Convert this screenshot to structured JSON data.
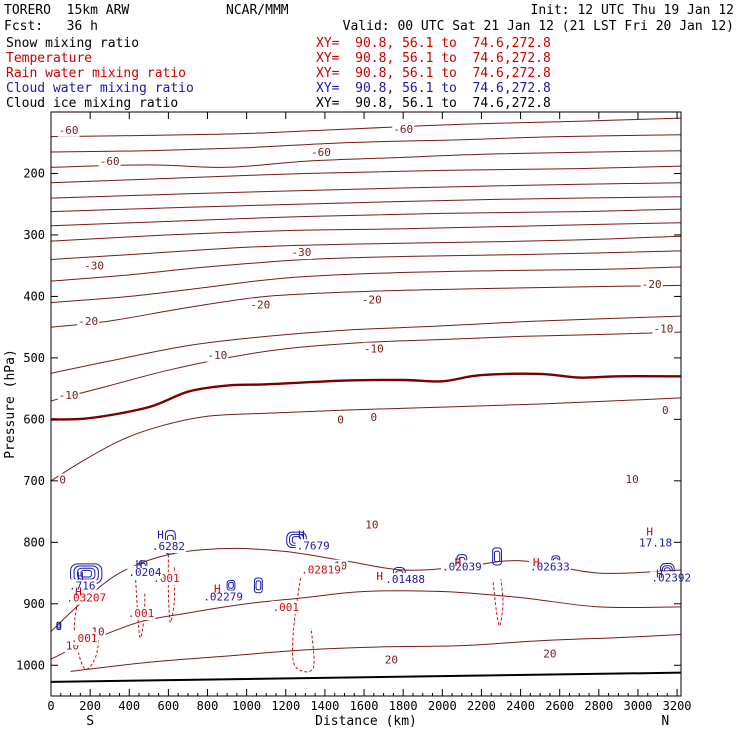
{
  "header": {
    "model": "TORERO  15km ARW",
    "org": "NCAR/MMM",
    "init": "Init: 12 UTC Thu 19 Jan 12",
    "fcst": "Fcst:   36 h",
    "valid": "Valid: 00 UTC Sat 21 Jan 12 (21 LST Fri 20 Jan 12)"
  },
  "legend": [
    {
      "label": "Snow mixing ratio",
      "color": "#000000",
      "xy": "XY=  90.8, 56.1 to  74.6,272.8"
    },
    {
      "label": "Temperature",
      "color": "#cc0000",
      "xy": "XY=  90.8, 56.1 to  74.6,272.8"
    },
    {
      "label": "Rain water mixing ratio",
      "color": "#cc0000",
      "xy": "XY=  90.8, 56.1 to  74.6,272.8"
    },
    {
      "label": "Cloud water mixing ratio",
      "color": "#1a1aaa",
      "xy": "XY=  90.8, 56.1 to  74.6,272.8"
    },
    {
      "label": "Cloud ice mixing ratio",
      "color": "#000000",
      "xy": "XY=  90.8, 56.1 to  74.6,272.8"
    }
  ],
  "chart_data": {
    "type": "line",
    "xlabel": "Distance (km)",
    "ylabel": "Pressure (hPa)",
    "xlim": [
      0,
      3220
    ],
    "ylim": [
      1050,
      100
    ],
    "xticks": [
      0,
      200,
      400,
      600,
      800,
      1000,
      1200,
      1400,
      1600,
      1800,
      2000,
      2200,
      2400,
      2600,
      2800,
      3000,
      3200
    ],
    "yticks": [
      200,
      300,
      400,
      500,
      600,
      700,
      800,
      900,
      1000
    ],
    "x_end_labels": {
      "left": "S",
      "right": "N"
    },
    "ground_pressure": [
      [
        0,
        1027
      ],
      [
        3220,
        1012
      ]
    ],
    "temperature_colors": {
      "line": "#7a1a1a",
      "freezing": "#7a0000"
    },
    "temperature_contours": [
      {
        "level": 0,
        "bold": true,
        "points": [
          [
            0,
            600
          ],
          [
            200,
            598
          ],
          [
            500,
            580
          ],
          [
            700,
            555
          ],
          [
            900,
            545
          ],
          [
            1100,
            543
          ],
          [
            1500,
            537
          ],
          [
            1800,
            536
          ],
          [
            2000,
            538
          ],
          [
            2200,
            528
          ],
          [
            2500,
            526
          ],
          [
            2700,
            532
          ],
          [
            2900,
            530
          ],
          [
            3220,
            530
          ]
        ]
      },
      {
        "level": 0,
        "bold": false,
        "points": [
          [
            0,
            700
          ],
          [
            150,
            670
          ],
          [
            350,
            635
          ],
          [
            550,
            612
          ],
          [
            800,
            595
          ],
          [
            1100,
            590
          ],
          [
            1500,
            585
          ],
          [
            2000,
            580
          ],
          [
            2500,
            575
          ],
          [
            3220,
            565
          ]
        ]
      },
      {
        "level": -10,
        "points": [
          [
            0,
            570
          ],
          [
            300,
            545
          ],
          [
            600,
            520
          ],
          [
            900,
            500
          ],
          [
            1200,
            485
          ],
          [
            1600,
            475
          ],
          [
            2000,
            470
          ],
          [
            2400,
            465
          ],
          [
            2800,
            462
          ],
          [
            3220,
            458
          ]
        ]
      },
      {
        "level": -10,
        "points": [
          [
            0,
            525
          ],
          [
            300,
            505
          ],
          [
            700,
            480
          ],
          [
            1100,
            465
          ],
          [
            1500,
            455
          ],
          [
            2000,
            448
          ],
          [
            2500,
            440
          ],
          [
            3220,
            432
          ]
        ]
      },
      {
        "level": -20,
        "points": [
          [
            0,
            450
          ],
          [
            300,
            440
          ],
          [
            700,
            418
          ],
          [
            1100,
            400
          ],
          [
            1600,
            392
          ],
          [
            2100,
            388
          ],
          [
            2600,
            385
          ],
          [
            3220,
            382
          ]
        ]
      },
      {
        "level": -20,
        "points": [
          [
            0,
            410
          ],
          [
            400,
            400
          ],
          [
            800,
            385
          ],
          [
            1200,
            370
          ],
          [
            1700,
            362
          ],
          [
            2300,
            358
          ],
          [
            2800,
            356
          ],
          [
            3220,
            352
          ]
        ]
      },
      {
        "level": -30,
        "points": [
          [
            0,
            375
          ],
          [
            400,
            365
          ],
          [
            800,
            352
          ],
          [
            1300,
            340
          ],
          [
            1800,
            335
          ],
          [
            2400,
            332
          ],
          [
            3220,
            326
          ]
        ]
      },
      {
        "level": -30,
        "points": [
          [
            0,
            340
          ],
          [
            500,
            330
          ],
          [
            1000,
            320
          ],
          [
            1500,
            315
          ],
          [
            2100,
            312
          ],
          [
            2700,
            308
          ],
          [
            3220,
            302
          ]
        ]
      },
      {
        "level": -40,
        "points": [
          [
            0,
            310
          ],
          [
            600,
            300
          ],
          [
            1200,
            293
          ],
          [
            1800,
            290
          ],
          [
            2500,
            285
          ],
          [
            3220,
            280
          ]
        ]
      },
      {
        "level": -40,
        "points": [
          [
            0,
            285
          ],
          [
            600,
            278
          ],
          [
            1300,
            270
          ],
          [
            2000,
            265
          ],
          [
            2700,
            262
          ],
          [
            3220,
            258
          ]
        ]
      },
      {
        "level": -50,
        "points": [
          [
            0,
            262
          ],
          [
            700,
            255
          ],
          [
            1500,
            248
          ],
          [
            2300,
            242
          ],
          [
            3220,
            238
          ]
        ]
      },
      {
        "level": -50,
        "points": [
          [
            0,
            240
          ],
          [
            700,
            233
          ],
          [
            1500,
            226
          ],
          [
            2300,
            220
          ],
          [
            3220,
            215
          ]
        ]
      },
      {
        "level": -60,
        "points": [
          [
            0,
            215
          ],
          [
            600,
            208
          ],
          [
            1300,
            200
          ],
          [
            2000,
            195
          ],
          [
            2700,
            192
          ],
          [
            3220,
            188
          ]
        ]
      },
      {
        "level": -60,
        "points": [
          [
            0,
            190
          ],
          [
            500,
            186
          ],
          [
            900,
            190
          ],
          [
            1300,
            180
          ],
          [
            1700,
            175
          ],
          [
            2300,
            168
          ],
          [
            3220,
            163
          ]
        ]
      },
      {
        "level": -60,
        "points": [
          [
            0,
            165
          ],
          [
            500,
            163
          ],
          [
            1000,
            158
          ],
          [
            1500,
            150
          ],
          [
            2100,
            145
          ],
          [
            2600,
            140
          ],
          [
            3220,
            137
          ]
        ]
      },
      {
        "level": -60,
        "points": [
          [
            0,
            140
          ],
          [
            500,
            138
          ],
          [
            1000,
            135
          ],
          [
            1500,
            128
          ],
          [
            2100,
            120
          ],
          [
            2700,
            115
          ],
          [
            3220,
            110
          ]
        ]
      },
      {
        "level": 10,
        "points": [
          [
            0,
            945
          ],
          [
            150,
            900
          ],
          [
            350,
            850
          ],
          [
            600,
            820
          ],
          [
            900,
            810
          ],
          [
            1200,
            815
          ],
          [
            1500,
            830
          ],
          [
            1800,
            845
          ],
          [
            2100,
            840
          ],
          [
            2400,
            830
          ],
          [
            2800,
            850
          ],
          [
            3220,
            845
          ]
        ]
      },
      {
        "level": 10,
        "points": [
          [
            0,
            990
          ],
          [
            200,
            960
          ],
          [
            450,
            930
          ],
          [
            700,
            915
          ],
          [
            1000,
            900
          ],
          [
            1300,
            890
          ],
          [
            1600,
            880
          ],
          [
            2000,
            880
          ],
          [
            2400,
            890
          ],
          [
            2800,
            905
          ],
          [
            3220,
            905
          ]
        ]
      },
      {
        "level": 20,
        "points": [
          [
            100,
            1010
          ],
          [
            500,
            995
          ],
          [
            900,
            985
          ],
          [
            1300,
            975
          ],
          [
            1700,
            970
          ],
          [
            2100,
            968
          ],
          [
            2500,
            960
          ],
          [
            2900,
            955
          ],
          [
            3220,
            950
          ]
        ]
      }
    ],
    "temperature_labels": [
      {
        "x": 90,
        "p": 129,
        "text": "-60"
      },
      {
        "x": 300,
        "p": 180,
        "text": "-60"
      },
      {
        "x": 1380,
        "p": 165,
        "text": "-60"
      },
      {
        "x": 1800,
        "p": 128,
        "text": "-60"
      },
      {
        "x": 220,
        "p": 350,
        "text": "-30"
      },
      {
        "x": 1280,
        "p": 328,
        "text": "-30"
      },
      {
        "x": 3070,
        "p": 380,
        "text": "-20"
      },
      {
        "x": 1070,
        "p": 413,
        "text": "-20"
      },
      {
        "x": 190,
        "p": 440,
        "text": "-20"
      },
      {
        "x": 1640,
        "p": 405,
        "text": "-20"
      },
      {
        "x": 3130,
        "p": 452,
        "text": "-10"
      },
      {
        "x": 1650,
        "p": 485,
        "text": "-10"
      },
      {
        "x": 850,
        "p": 495,
        "text": "-10"
      },
      {
        "x": 90,
        "p": 560,
        "text": "-10"
      },
      {
        "x": 1480,
        "p": 600,
        "text": "0"
      },
      {
        "x": 1650,
        "p": 596,
        "text": "0"
      },
      {
        "x": 3140,
        "p": 585,
        "text": "0"
      },
      {
        "x": 60,
        "p": 698,
        "text": "0"
      },
      {
        "x": 2970,
        "p": 697,
        "text": "10"
      },
      {
        "x": 1640,
        "p": 771,
        "text": "10"
      },
      {
        "x": 1480,
        "p": 838,
        "text": "10"
      },
      {
        "x": 240,
        "p": 945,
        "text": "10"
      },
      {
        "x": 110,
        "p": 968,
        "text": "10"
      },
      {
        "x": 1740,
        "p": 991,
        "text": "20"
      },
      {
        "x": 2550,
        "p": 981,
        "text": "20"
      }
    ],
    "rain_water_contours": [
      {
        "points": [
          [
            140,
            890
          ],
          [
            120,
            945
          ],
          [
            170,
            1005
          ],
          [
            230,
            985
          ],
          [
            250,
            935
          ]
        ]
      },
      {
        "points": [
          [
            430,
            845
          ],
          [
            440,
            900
          ],
          [
            455,
            955
          ],
          [
            475,
            925
          ],
          [
            480,
            880
          ]
        ]
      },
      {
        "points": [
          [
            600,
            820
          ],
          [
            600,
            880
          ],
          [
            610,
            930
          ],
          [
            630,
            895
          ],
          [
            630,
            840
          ]
        ]
      },
      {
        "points": [
          [
            1280,
            850
          ],
          [
            1240,
            940
          ],
          [
            1245,
            1000
          ],
          [
            1340,
            1005
          ],
          [
            1330,
            940
          ]
        ]
      },
      {
        "points": [
          [
            2260,
            865
          ],
          [
            2280,
            920
          ],
          [
            2295,
            935
          ],
          [
            2310,
            900
          ],
          [
            2300,
            860
          ]
        ]
      }
    ],
    "rain_labels": [
      {
        "x": 170,
        "p": 956,
        "text": ".001"
      },
      {
        "x": 460,
        "p": 915,
        "text": ".001"
      },
      {
        "x": 590,
        "p": 858,
        "text": ".001"
      },
      {
        "x": 1200,
        "p": 905,
        "text": ".001"
      },
      {
        "x": 1380,
        "p": 844,
        "text": ".02819"
      },
      {
        "x": 180,
        "p": 890,
        "text": ".03207"
      }
    ],
    "cloud_water_contours": [
      {
        "cx": 180,
        "p": 851,
        "rx": 160,
        "rp": 32
      },
      {
        "cx": 470,
        "p": 840,
        "rx": 40,
        "rp": 20
      },
      {
        "cx": 610,
        "p": 800,
        "rx": 50,
        "rp": 38
      },
      {
        "cx": 1255,
        "p": 796,
        "rx": 100,
        "rp": 25
      },
      {
        "cx": 1780,
        "p": 854,
        "rx": 60,
        "rp": 26
      },
      {
        "cx": 2100,
        "p": 831,
        "rx": 50,
        "rp": 22
      },
      {
        "cx": 2280,
        "p": 823,
        "rx": 45,
        "rp": 28
      },
      {
        "cx": 2580,
        "p": 831,
        "rx": 40,
        "rp": 18
      },
      {
        "cx": 3150,
        "p": 847,
        "rx": 70,
        "rp": 25
      },
      {
        "cx": 1060,
        "p": 870,
        "rx": 40,
        "rp": 24
      },
      {
        "cx": 920,
        "p": 870,
        "rx": 40,
        "rp": 16
      },
      {
        "cx": 40,
        "p": 936,
        "rx": 20,
        "rp": 12
      }
    ],
    "cloud_water_labels": [
      {
        "x": 160,
        "p": 870,
        "text": ".716"
      },
      {
        "x": 480,
        "p": 848,
        "text": ".0204"
      },
      {
        "x": 600,
        "p": 806,
        "text": ".6282"
      },
      {
        "x": 1340,
        "p": 805,
        "text": ".7679"
      },
      {
        "x": 1810,
        "p": 860,
        "text": ".01488"
      },
      {
        "x": 2100,
        "p": 839,
        "text": ".02039"
      },
      {
        "x": 2550,
        "p": 839,
        "text": ".02633"
      },
      {
        "x": 3170,
        "p": 857,
        "text": ".02392"
      },
      {
        "x": 880,
        "p": 888,
        "text": ".02279"
      },
      {
        "x": 3090,
        "p": 800,
        "text": "17.18"
      }
    ],
    "h_markers": [
      {
        "x": 150,
        "p": 855,
        "color": "#1a1aaa"
      },
      {
        "x": 140,
        "p": 880,
        "color": "#cc0000"
      },
      {
        "x": 450,
        "p": 835,
        "color": "#1a1aaa"
      },
      {
        "x": 560,
        "p": 787,
        "color": "#1a1aaa"
      },
      {
        "x": 1280,
        "p": 787,
        "color": "#1a1aaa"
      },
      {
        "x": 850,
        "p": 875,
        "color": "#cc0000"
      },
      {
        "x": 1680,
        "p": 855,
        "color": "#cc0000"
      },
      {
        "x": 2080,
        "p": 832,
        "color": "#cc0000"
      },
      {
        "x": 2480,
        "p": 832,
        "color": "#cc0000"
      },
      {
        "x": 3060,
        "p": 782,
        "color": "#cc0000"
      },
      {
        "x": 3110,
        "p": 851,
        "color": "#cc0000"
      }
    ]
  }
}
